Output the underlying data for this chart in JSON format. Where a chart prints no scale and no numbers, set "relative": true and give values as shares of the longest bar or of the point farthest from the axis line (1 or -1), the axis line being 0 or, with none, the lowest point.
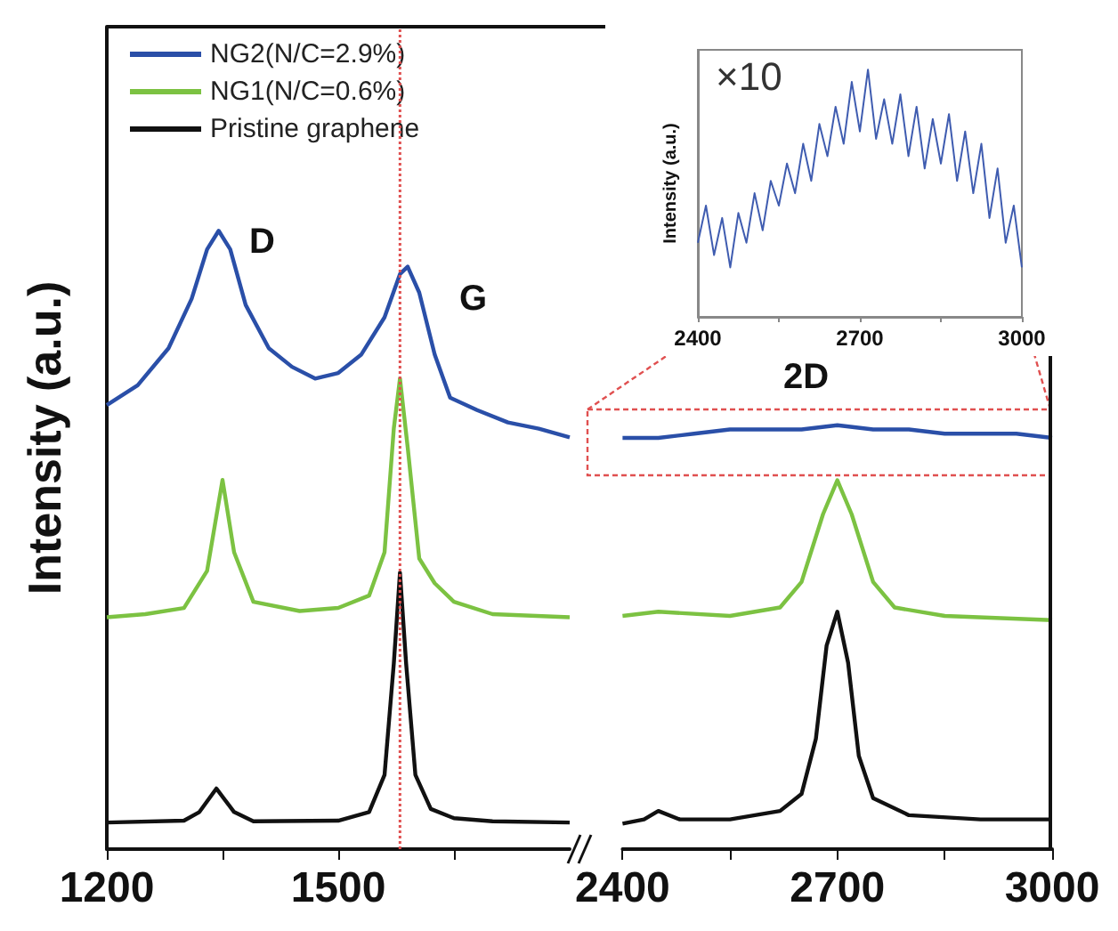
{
  "chart_data": [
    {
      "type": "line",
      "relative": true,
      "ylabel": "Intensity (a.u.)",
      "xlim": [
        1200,
        1800
      ],
      "xticks": [
        1200,
        {
          "value": 1350,
          "label": null
        },
        1500,
        {
          "value": 1650,
          "label": null
        }
      ],
      "legend": "top left",
      "line_style": "solid",
      "annotations": [
        "D",
        "G"
      ],
      "ref_lines": [
        {
          "axis": "x",
          "value": 1580,
          "label": null,
          "color": "#e05050",
          "line_style": "dotted"
        }
      ],
      "series": [
        {
          "name": "NG2(N/C=2.9%)",
          "color": "#2a4fa8",
          "x": [
            1200,
            1240,
            1280,
            1310,
            1330,
            1345,
            1360,
            1380,
            1410,
            1440,
            1470,
            1500,
            1530,
            1560,
            1580,
            1590,
            1605,
            1625,
            1645,
            1680,
            1720,
            1760,
            1800
          ],
          "values": [
            0.718,
            0.75,
            0.81,
            0.89,
            0.97,
            1.0,
            0.97,
            0.88,
            0.81,
            0.78,
            0.761,
            0.77,
            0.8,
            0.86,
            0.93,
            0.942,
            0.9,
            0.8,
            0.73,
            0.71,
            0.69,
            0.68,
            0.666
          ]
        },
        {
          "name": "NG1(N/C=0.6%)",
          "color": "#7cc242",
          "x": [
            1200,
            1250,
            1300,
            1330,
            1350,
            1365,
            1390,
            1450,
            1500,
            1540,
            1560,
            1572,
            1580,
            1590,
            1605,
            1625,
            1650,
            1700,
            1800
          ],
          "values": [
            0.375,
            0.38,
            0.39,
            0.45,
            0.597,
            0.48,
            0.4,
            0.385,
            0.39,
            0.41,
            0.48,
            0.68,
            0.761,
            0.65,
            0.47,
            0.43,
            0.4,
            0.38,
            0.375
          ]
        },
        {
          "name": "Pristine graphene",
          "color": "#111111",
          "x": [
            1200,
            1300,
            1320,
            1342,
            1365,
            1390,
            1500,
            1540,
            1560,
            1572,
            1580,
            1588,
            1600,
            1620,
            1650,
            1700,
            1800
          ],
          "values": [
            0.043,
            0.046,
            0.06,
            0.098,
            0.06,
            0.045,
            0.046,
            0.06,
            0.12,
            0.3,
            0.447,
            0.3,
            0.12,
            0.065,
            0.05,
            0.045,
            0.043
          ]
        }
      ]
    },
    {
      "type": "line",
      "relative": true,
      "xlim": [
        2400,
        3000
      ],
      "xticks": [
        2400,
        {
          "value": 2550,
          "label": null
        },
        2700,
        {
          "value": 2850,
          "label": null
        },
        3000
      ],
      "line_style": "solid",
      "annotations": [
        "2D"
      ],
      "series": [
        {
          "color": "#2a4fa8",
          "x": [
            2400,
            2450,
            2500,
            2550,
            2600,
            2650,
            2700,
            2750,
            2800,
            2850,
            2900,
            2950,
            3000
          ],
          "values": [
            0.97,
            0.97,
            0.98,
            0.99,
            0.99,
            0.99,
            1,
            0.99,
            0.99,
            0.98,
            0.98,
            0.98,
            0.97
          ]
        },
        {
          "color": "#7cc242",
          "x": [
            2400,
            2450,
            2550,
            2620,
            2650,
            2680,
            2700,
            2720,
            2750,
            2780,
            2850,
            3000
          ],
          "values": [
            0.55,
            0.56,
            0.55,
            0.57,
            0.63,
            0.79,
            0.87,
            0.79,
            0.63,
            0.57,
            0.55,
            0.54
          ]
        },
        {
          "color": "#111111",
          "x": [
            2400,
            2430,
            2450,
            2480,
            2550,
            2620,
            2650,
            2670,
            2685,
            2700,
            2715,
            2730,
            2750,
            2800,
            2900,
            3000
          ],
          "values": [
            0.06,
            0.07,
            0.09,
            0.07,
            0.07,
            0.09,
            0.13,
            0.26,
            0.48,
            0.56,
            0.44,
            0.22,
            0.12,
            0.08,
            0.07,
            0.07
          ]
        }
      ]
    },
    {
      "type": "line",
      "relative": true,
      "ylabel": "Intensity (a.u.)",
      "xlim": [
        2400,
        3000
      ],
      "xticks": [
        2400,
        {
          "value": 2550,
          "label": null
        },
        2700,
        {
          "value": 2850,
          "label": null
        },
        3000
      ],
      "line_style": "solid",
      "annotations": [
        "×10"
      ],
      "series": [
        {
          "color": "#3f5cb0",
          "x": [
            2400,
            2415,
            2430,
            2445,
            2460,
            2475,
            2490,
            2505,
            2520,
            2535,
            2550,
            2565,
            2580,
            2595,
            2610,
            2625,
            2640,
            2655,
            2670,
            2685,
            2700,
            2715,
            2730,
            2745,
            2760,
            2775,
            2790,
            2805,
            2820,
            2835,
            2850,
            2865,
            2880,
            2895,
            2910,
            2925,
            2940,
            2955,
            2970,
            2985,
            3000
          ],
          "values": [
            0.3,
            0.45,
            0.25,
            0.4,
            0.2,
            0.42,
            0.3,
            0.5,
            0.35,
            0.55,
            0.45,
            0.62,
            0.5,
            0.7,
            0.55,
            0.78,
            0.65,
            0.85,
            0.7,
            0.95,
            0.75,
            1.0,
            0.72,
            0.88,
            0.7,
            0.9,
            0.65,
            0.85,
            0.6,
            0.8,
            0.62,
            0.82,
            0.55,
            0.75,
            0.5,
            0.7,
            0.4,
            0.6,
            0.3,
            0.45,
            0.2
          ]
        }
      ]
    }
  ]
}
